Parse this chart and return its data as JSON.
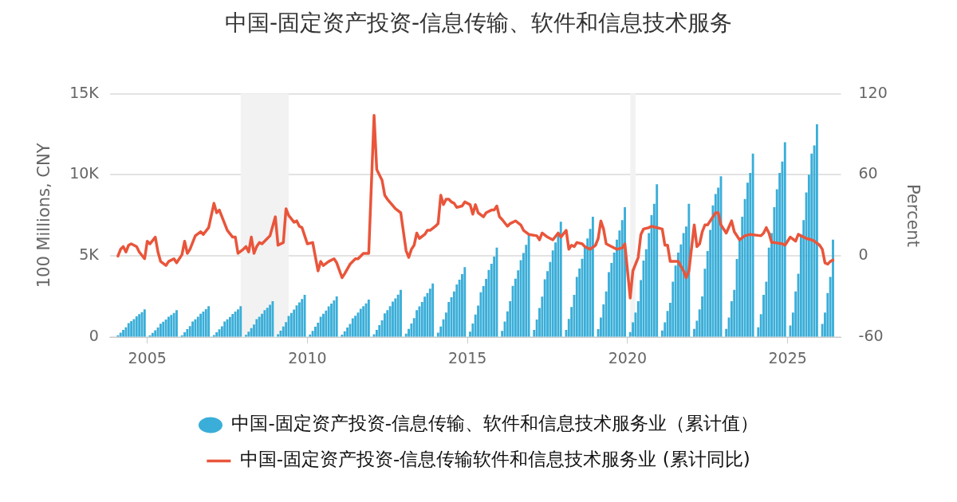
{
  "chart_data": {
    "type": "bar",
    "title": "中国-固定资产投资-信息传输、软件和信息技术服务",
    "ylabel": "100 Millions, CNY",
    "y2label": "Percent",
    "xlim": [
      "2003-11",
      "2026-09"
    ],
    "xticks": [
      "2005",
      "2010",
      "2015",
      "2020",
      "2025"
    ],
    "ylim": [
      0,
      15000
    ],
    "yticks": [
      {
        "value": 0,
        "label": "0"
      },
      {
        "value": 5000,
        "label": "5K"
      },
      {
        "value": 10000,
        "label": "10K"
      },
      {
        "value": 15000,
        "label": "15K"
      }
    ],
    "y2lim": [
      -60,
      120
    ],
    "y2ticks": [
      -60,
      0,
      60,
      120
    ],
    "grid": "y",
    "legend": "bottom",
    "marker": "none",
    "line_style": "solid",
    "bands": [
      {
        "axis": "x",
        "from": "2007-12",
        "to": "2009-06",
        "color": "#f2f2f2"
      },
      {
        "axis": "x",
        "from": "2020-02",
        "to": "2020-04",
        "color": "#f2f2f2"
      }
    ],
    "series": [
      {
        "name": "中国-固定资产投资-信息传输、软件和信息技术服务业（累计值）",
        "color": "#3aaed8",
        "x": [
          "2004-02",
          "2004-03",
          "2004-04",
          "2004-05",
          "2004-06",
          "2004-07",
          "2004-08",
          "2004-09",
          "2004-10",
          "2004-11",
          "2004-12",
          "2005-02",
          "2005-03",
          "2005-04",
          "2005-05",
          "2005-06",
          "2005-07",
          "2005-08",
          "2005-09",
          "2005-10",
          "2005-11",
          "2005-12",
          "2006-02",
          "2006-03",
          "2006-04",
          "2006-05",
          "2006-06",
          "2006-07",
          "2006-08",
          "2006-09",
          "2006-10",
          "2006-11",
          "2006-12",
          "2007-02",
          "2007-03",
          "2007-04",
          "2007-05",
          "2007-06",
          "2007-07",
          "2007-08",
          "2007-09",
          "2007-10",
          "2007-11",
          "2007-12",
          "2008-02",
          "2008-03",
          "2008-04",
          "2008-05",
          "2008-06",
          "2008-07",
          "2008-08",
          "2008-09",
          "2008-10",
          "2008-11",
          "2008-12",
          "2009-02",
          "2009-03",
          "2009-04",
          "2009-05",
          "2009-06",
          "2009-07",
          "2009-08",
          "2009-09",
          "2009-10",
          "2009-11",
          "2009-12",
          "2010-02",
          "2010-03",
          "2010-04",
          "2010-05",
          "2010-06",
          "2010-07",
          "2010-08",
          "2010-09",
          "2010-10",
          "2010-11",
          "2010-12",
          "2011-02",
          "2011-03",
          "2011-04",
          "2011-05",
          "2011-06",
          "2011-07",
          "2011-08",
          "2011-09",
          "2011-10",
          "2011-11",
          "2011-12",
          "2012-02",
          "2012-03",
          "2012-04",
          "2012-05",
          "2012-06",
          "2012-07",
          "2012-08",
          "2012-09",
          "2012-10",
          "2012-11",
          "2012-12",
          "2013-02",
          "2013-03",
          "2013-04",
          "2013-05",
          "2013-06",
          "2013-07",
          "2013-08",
          "2013-09",
          "2013-10",
          "2013-11",
          "2013-12",
          "2014-02",
          "2014-03",
          "2014-04",
          "2014-05",
          "2014-06",
          "2014-07",
          "2014-08",
          "2014-09",
          "2014-10",
          "2014-11",
          "2014-12",
          "2015-02",
          "2015-03",
          "2015-04",
          "2015-05",
          "2015-06",
          "2015-07",
          "2015-08",
          "2015-09",
          "2015-10",
          "2015-11",
          "2015-12",
          "2016-02",
          "2016-03",
          "2016-04",
          "2016-05",
          "2016-06",
          "2016-07",
          "2016-08",
          "2016-09",
          "2016-10",
          "2016-11",
          "2016-12",
          "2017-02",
          "2017-03",
          "2017-04",
          "2017-05",
          "2017-06",
          "2017-07",
          "2017-08",
          "2017-09",
          "2017-10",
          "2017-11",
          "2017-12",
          "2018-02",
          "2018-03",
          "2018-04",
          "2018-05",
          "2018-06",
          "2018-07",
          "2018-08",
          "2018-09",
          "2018-10",
          "2018-11",
          "2018-12",
          "2019-02",
          "2019-03",
          "2019-04",
          "2019-05",
          "2019-06",
          "2019-07",
          "2019-08",
          "2019-09",
          "2019-10",
          "2019-11",
          "2019-12",
          "2020-02",
          "2020-03",
          "2020-04",
          "2020-05",
          "2020-06",
          "2020-07",
          "2020-08",
          "2020-09",
          "2020-10",
          "2020-11",
          "2020-12",
          "2021-02",
          "2021-03",
          "2021-04",
          "2021-05",
          "2021-06",
          "2021-07",
          "2021-08",
          "2021-09",
          "2021-10",
          "2021-11",
          "2021-12",
          "2022-02",
          "2022-03",
          "2022-04",
          "2022-05",
          "2022-06",
          "2022-07",
          "2022-08",
          "2022-09",
          "2022-10",
          "2022-11",
          "2022-12",
          "2023-02",
          "2023-03",
          "2023-04",
          "2023-05",
          "2023-06",
          "2023-07",
          "2023-08",
          "2023-09",
          "2023-10",
          "2023-11",
          "2023-12",
          "2024-02",
          "2024-03",
          "2024-04",
          "2024-05",
          "2024-06",
          "2024-07",
          "2024-08",
          "2024-09",
          "2024-10",
          "2024-11",
          "2024-12",
          "2025-02",
          "2025-03",
          "2025-04",
          "2025-05",
          "2025-06",
          "2025-07",
          "2025-08",
          "2025-09",
          "2025-10",
          "2025-11",
          "2025-12",
          "2026-02",
          "2026-03",
          "2026-04",
          "2026-05",
          "2026-06"
        ],
        "values": [
          100,
          260,
          430,
          600,
          850,
          970,
          1100,
          1270,
          1400,
          1530,
          1700,
          100,
          250,
          410,
          580,
          820,
          940,
          1070,
          1240,
          1350,
          1480,
          1650,
          110,
          290,
          480,
          670,
          950,
          1080,
          1240,
          1430,
          1560,
          1710,
          1900,
          120,
          290,
          470,
          660,
          950,
          1080,
          1230,
          1420,
          1560,
          1700,
          1900,
          130,
          330,
          550,
          770,
          1100,
          1250,
          1430,
          1650,
          1800,
          1980,
          2200,
          160,
          390,
          650,
          910,
          1300,
          1480,
          1690,
          1950,
          2130,
          2340,
          2600,
          150,
          380,
          630,
          880,
          1250,
          1430,
          1630,
          1880,
          2050,
          2250,
          2500,
          140,
          350,
          580,
          800,
          1150,
          1310,
          1500,
          1730,
          1890,
          2070,
          2300,
          170,
          440,
          730,
          1020,
          1450,
          1650,
          1890,
          2180,
          2380,
          2610,
          2900,
          200,
          500,
          830,
          1160,
          1650,
          1880,
          2150,
          2480,
          2710,
          2970,
          3300,
          260,
          650,
          1080,
          1500,
          2150,
          2450,
          2800,
          3230,
          3530,
          3870,
          4300,
          330,
          830,
          1380,
          1930,
          2750,
          3140,
          3580,
          4130,
          4510,
          4950,
          5500,
          380,
          950,
          1580,
          2200,
          3150,
          3590,
          4100,
          4730,
          5170,
          5670,
          6300,
          430,
          1070,
          1780,
          2490,
          3550,
          4050,
          4620,
          5330,
          5820,
          6390,
          7100,
          440,
          1110,
          1850,
          2590,
          3700,
          4220,
          4810,
          5550,
          6070,
          6660,
          7400,
          480,
          1200,
          2000,
          2800,
          4000,
          4560,
          5200,
          6000,
          6560,
          7200,
          8000,
          300,
          900,
          1500,
          2200,
          3500,
          4700,
          5400,
          6400,
          7500,
          8200,
          9400,
          400,
          900,
          1600,
          2100,
          3400,
          4400,
          5200,
          5700,
          6400,
          6800,
          8200,
          500,
          1000,
          1700,
          2500,
          4200,
          5300,
          6600,
          8100,
          8800,
          9200,
          9900,
          500,
          1200,
          2200,
          2900,
          4800,
          6000,
          7400,
          8500,
          9500,
          10100,
          11300,
          600,
          1400,
          2600,
          3400,
          5500,
          6400,
          8000,
          9100,
          10100,
          10800,
          12000,
          700,
          1500,
          2800,
          3900,
          6300,
          7200,
          8900,
          10000,
          11300,
          11800,
          13100,
          800,
          1500,
          2700,
          3700,
          6000
        ]
      },
      {
        "type": "line",
        "name": "中国-固定资产投资-信息传输软件和信息技术服务业 (累计同比)",
        "color": "#e9553b",
        "axis": "y2",
        "x": [
          "2004-02",
          "2004-03",
          "2004-04",
          "2004-05",
          "2004-06",
          "2004-07",
          "2004-09",
          "2004-10",
          "2004-12",
          "2005-01",
          "2005-02",
          "2005-04",
          "2005-05",
          "2005-06",
          "2005-08",
          "2005-09",
          "2005-11",
          "2005-12",
          "2006-02",
          "2006-03",
          "2006-04",
          "2006-05",
          "2006-07",
          "2006-09",
          "2006-10",
          "2006-12",
          "2007-02",
          "2007-03",
          "2007-04",
          "2007-06",
          "2007-07",
          "2007-09",
          "2007-10",
          "2007-11",
          "2008-01",
          "2008-02",
          "2008-03",
          "2008-04",
          "2008-05",
          "2008-06",
          "2008-07",
          "2008-08",
          "2008-10",
          "2008-11",
          "2009-01",
          "2009-02",
          "2009-04",
          "2009-05",
          "2009-06",
          "2009-08",
          "2009-09",
          "2009-10",
          "2009-11",
          "2009-12",
          "2010-01",
          "2010-03",
          "2010-05",
          "2010-06",
          "2010-07",
          "2010-09",
          "2010-11",
          "2010-12",
          "2011-02",
          "2011-03",
          "2011-05",
          "2011-07",
          "2011-08",
          "2011-10",
          "2011-12",
          "2012-02",
          "2012-03",
          "2012-05",
          "2012-06",
          "2012-07",
          "2012-10",
          "2012-12",
          "2013-02",
          "2013-03",
          "2013-04",
          "2013-05",
          "2013-06",
          "2013-07",
          "2013-09",
          "2013-10",
          "2013-11",
          "2014-01",
          "2014-02",
          "2014-03",
          "2014-04",
          "2014-05",
          "2014-06",
          "2014-07",
          "2014-08",
          "2014-09",
          "2014-11",
          "2014-12",
          "2015-01",
          "2015-02",
          "2015-03",
          "2015-04",
          "2015-05",
          "2015-07",
          "2015-08",
          "2015-10",
          "2015-11",
          "2015-12",
          "2016-01",
          "2016-02",
          "2016-04",
          "2016-05",
          "2016-07",
          "2016-09",
          "2016-10",
          "2016-12",
          "2017-03",
          "2017-04",
          "2017-05",
          "2017-07",
          "2017-09",
          "2017-11",
          "2017-12",
          "2018-02",
          "2018-03",
          "2018-04",
          "2018-05",
          "2018-06",
          "2018-08",
          "2018-09",
          "2018-11",
          "2019-01",
          "2019-02",
          "2019-03",
          "2019-04",
          "2019-05",
          "2019-07",
          "2019-09",
          "2019-11",
          "2019-12",
          "2020-02",
          "2020-03",
          "2020-05",
          "2020-06",
          "2020-07",
          "2020-09",
          "2020-10",
          "2020-12",
          "2021-02",
          "2021-03",
          "2021-04",
          "2021-05",
          "2021-07",
          "2021-08",
          "2021-10",
          "2021-11",
          "2021-12",
          "2022-02",
          "2022-03",
          "2022-04",
          "2022-05",
          "2022-06",
          "2022-07",
          "2022-09",
          "2022-10",
          "2022-11",
          "2022-12",
          "2023-02",
          "2023-04",
          "2023-05",
          "2023-07",
          "2023-09",
          "2023-11",
          "2024-03",
          "2024-04",
          "2024-05",
          "2024-06",
          "2024-07",
          "2024-08",
          "2024-11",
          "2024-12",
          "2025-02",
          "2025-04",
          "2025-05",
          "2025-06",
          "2025-08",
          "2025-10",
          "2025-11",
          "2026-01",
          "2026-02",
          "2026-03",
          "2026-04",
          "2026-05",
          "2026-06"
        ],
        "values": [
          0,
          5,
          7,
          3,
          8,
          9,
          7,
          3,
          -2,
          11,
          9,
          14,
          3,
          -4,
          -7,
          -4,
          -2,
          -5,
          1,
          11,
          2,
          5,
          15,
          18,
          16,
          21,
          39,
          32,
          34,
          24,
          19,
          14,
          14,
          2,
          5,
          7,
          3,
          14,
          2,
          7,
          10,
          9,
          13,
          15,
          29,
          8,
          10,
          35,
          30,
          25,
          26,
          22,
          21,
          15,
          9,
          10,
          -11,
          -4,
          -7,
          -4,
          -2,
          -5,
          -16,
          -13,
          -6,
          -2,
          -2,
          2,
          2,
          104,
          64,
          56,
          45,
          42,
          35,
          32,
          4,
          -1,
          5,
          8,
          17,
          13,
          16,
          19,
          19,
          22,
          24,
          45,
          38,
          42,
          42,
          40,
          39,
          36,
          37,
          40,
          39,
          38,
          31,
          38,
          32,
          29,
          32,
          34,
          34,
          37,
          29,
          27,
          22,
          24,
          26,
          23,
          19,
          16,
          15,
          12,
          17,
          14,
          12,
          17,
          14,
          19,
          5,
          8,
          7,
          10,
          9,
          7,
          5,
          8,
          13,
          26,
          20,
          9,
          7,
          5,
          6,
          9,
          -31,
          -11,
          -1,
          16,
          20,
          21,
          22,
          21,
          20,
          8,
          8,
          -4,
          -4,
          -4,
          -11,
          -16,
          -11,
          23,
          7,
          9,
          18,
          23,
          23,
          29,
          32,
          32,
          23,
          17,
          26,
          18,
          12,
          15,
          16,
          15,
          17,
          21,
          17,
          10,
          10,
          9,
          8,
          14,
          11,
          16,
          15,
          13,
          12,
          11,
          8,
          5,
          -5,
          -6,
          -4,
          -3
        ]
      }
    ]
  }
}
